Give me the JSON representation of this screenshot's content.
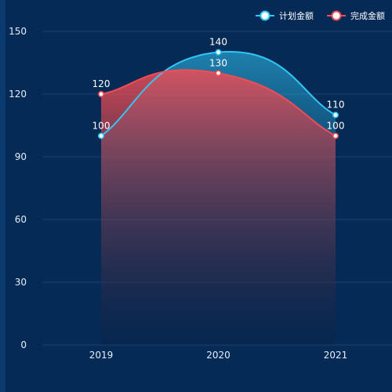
{
  "chart_data": {
    "type": "area",
    "categories": [
      "2019",
      "2020",
      "2021"
    ],
    "series": [
      {
        "name": "计划金额",
        "values": [
          100,
          140,
          110
        ]
      },
      {
        "name": "完成金额",
        "values": [
          120,
          130,
          100
        ]
      }
    ],
    "ylim": [
      0,
      150
    ],
    "yticks": [
      0,
      30,
      60,
      90,
      120,
      150
    ],
    "grid": true,
    "smooth": true,
    "legend": "top-right"
  },
  "colors": {
    "background": "#062a56",
    "axis_text": "#e6eefc",
    "grid": "#1d4477",
    "series": [
      "#32c7f5",
      "#f04d55"
    ]
  }
}
